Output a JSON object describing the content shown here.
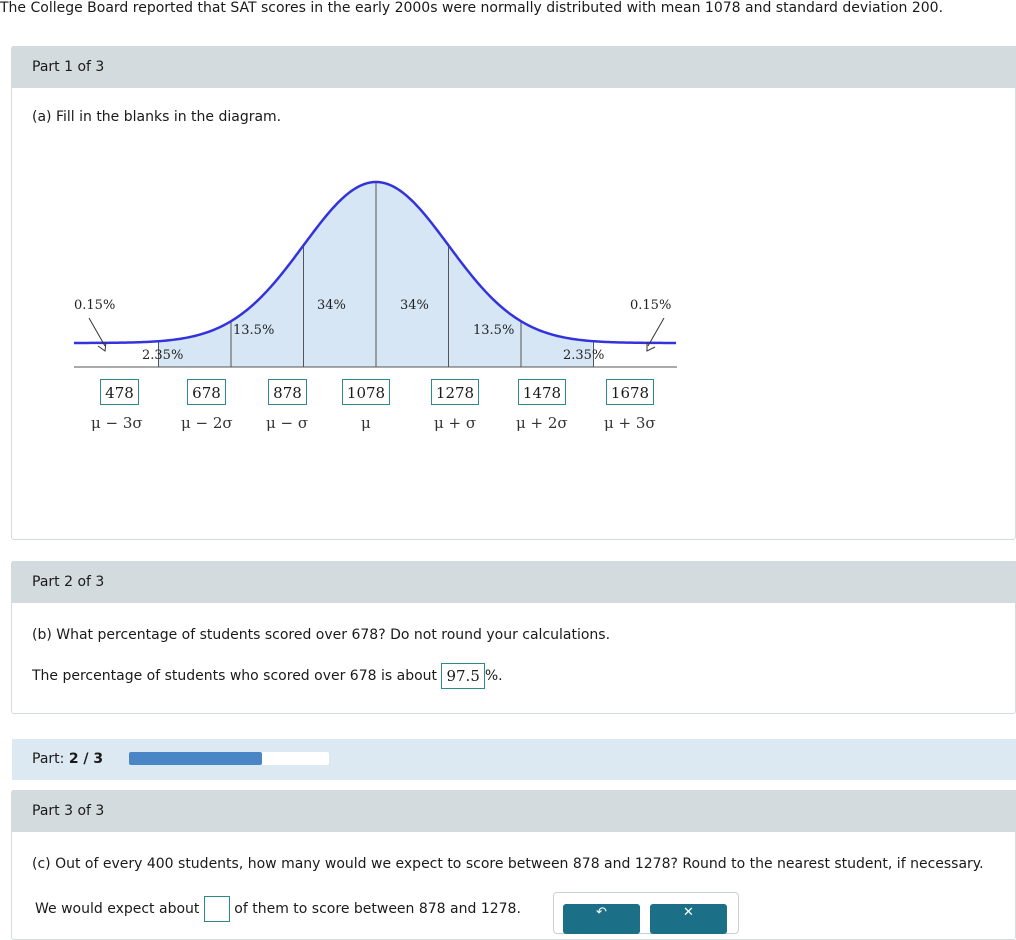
{
  "intro": "The College Board reported that SAT scores in the early 2000s were normally distributed with mean 1078 and standard deviation 200.",
  "part1": {
    "header": "Part 1 of 3",
    "question": "(a) Fill in the blanks in the diagram.",
    "percentages": {
      "far_left": "0.15%",
      "left_2": "2.35%",
      "left_1": "13.5%",
      "center_left": "34%",
      "center_right": "34%",
      "right_1": "13.5%",
      "right_2": "2.35%",
      "far_right": "0.15%"
    },
    "x_values": [
      "478",
      "678",
      "878",
      "1078",
      "1278",
      "1478",
      "1678"
    ],
    "sigma_labels": [
      "μ − 3σ",
      "μ − 2σ",
      "μ − σ",
      "μ",
      "μ + σ",
      "μ + 2σ",
      "μ + 3σ"
    ]
  },
  "part2": {
    "header": "Part 2 of 3",
    "question": "(b) What percentage of students scored over 678? Do not round your calculations.",
    "answer_prefix": "The percentage of students who scored over 678 is about",
    "answer_value": "97.5",
    "answer_suffix": "%."
  },
  "progress": {
    "label": "Part:",
    "value": "2 / 3",
    "fraction": 0.667
  },
  "part3": {
    "header": "Part 3 of 3",
    "question": "(c) Out of every 400 students, how many would we expect to score between 878 and 1278? Round to the nearest student, if necessary.",
    "answer_prefix": "We would expect about",
    "answer_suffix": "of them to score between 878 and 1278."
  },
  "colors": {
    "curve": "#3333dd",
    "fill": "#d6e6f4",
    "box_border": "#2d8a8a",
    "progress": "#4a86c5"
  }
}
